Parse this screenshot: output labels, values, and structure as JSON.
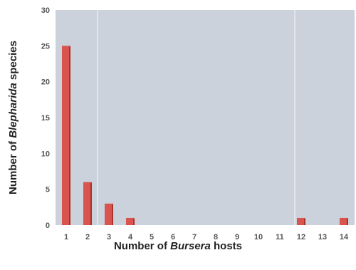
{
  "chart_data": {
    "type": "bar",
    "categories": [
      "1",
      "2",
      "3",
      "4",
      "5",
      "6",
      "7",
      "8",
      "9",
      "10",
      "11",
      "12",
      "13",
      "14"
    ],
    "values": [
      25,
      6,
      3,
      1,
      0,
      0,
      0,
      0,
      0,
      0,
      0,
      1,
      0,
      1
    ],
    "ylim": [
      0,
      30
    ],
    "yticks": [
      0,
      5,
      10,
      15,
      20,
      25,
      30
    ],
    "xlabel": {
      "prefix": "Number of ",
      "italic": "Bursera",
      "suffix": " hosts"
    },
    "ylabel": {
      "prefix": "Number of ",
      "italic": "Blepharida",
      "suffix": " species"
    },
    "grid": false,
    "colors": {
      "bar": "#d9534f",
      "bar_shade": "#a8322c",
      "plot_background": "#ccd2db",
      "separator": "#e8ecf0"
    }
  }
}
